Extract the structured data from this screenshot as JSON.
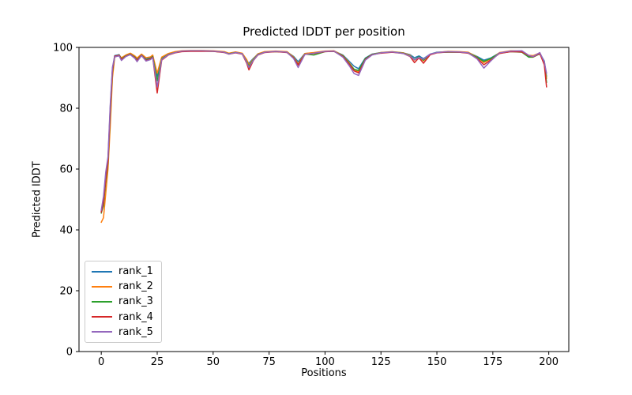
{
  "figure": {
    "title": "Predicted lDDT per position",
    "xlabel": "Positions",
    "ylabel": "Predicted lDDT",
    "background": "#ffffff",
    "spine_color": "#000000"
  },
  "chart_data": {
    "type": "line",
    "title": "Predicted lDDT per position",
    "xlabel": "Positions",
    "ylabel": "Predicted lDDT",
    "xlim": [
      -9.95,
      208.95
    ],
    "ylim": [
      0,
      100
    ],
    "xticks": [
      0,
      25,
      50,
      75,
      100,
      125,
      150,
      175,
      200
    ],
    "yticks": [
      0,
      20,
      40,
      60,
      80,
      100
    ],
    "grid": false,
    "legend_position": "lower-left",
    "x": [
      0,
      1,
      2,
      3,
      4,
      5,
      6,
      8,
      9,
      11,
      13,
      15,
      16,
      18,
      20,
      22,
      23,
      25,
      27,
      30,
      33,
      36,
      40,
      45,
      50,
      55,
      57,
      60,
      63,
      65,
      66,
      68,
      70,
      73,
      78,
      83,
      86,
      88,
      91,
      95,
      100,
      104,
      108,
      111,
      113,
      115,
      118,
      121,
      125,
      130,
      135,
      138,
      140,
      142,
      144,
      147,
      150,
      155,
      160,
      164,
      168,
      171,
      174,
      178,
      183,
      188,
      191,
      193,
      196,
      198,
      199
    ],
    "series": [
      {
        "name": "rank_1",
        "color": "#1f77b4",
        "values": [
          46,
          50,
          58,
          63,
          80,
          93,
          97.3,
          97.6,
          96.4,
          97.3,
          97.9,
          97.0,
          96.2,
          97.6,
          96.3,
          96.6,
          97.3,
          90.5,
          96.5,
          97.8,
          98.4,
          98.7,
          98.8,
          98.8,
          98.8,
          98.5,
          98.0,
          98.4,
          98.0,
          95.6,
          94.8,
          96.4,
          97.8,
          98.5,
          98.7,
          98.5,
          97.0,
          95.3,
          98.0,
          98.2,
          98.7,
          98.8,
          97.5,
          95.3,
          93.8,
          93.0,
          96.5,
          97.8,
          98.3,
          98.5,
          98.2,
          97.6,
          96.6,
          97.2,
          96.3,
          97.8,
          98.4,
          98.6,
          98.5,
          98.3,
          97.0,
          95.8,
          96.5,
          98.2,
          98.7,
          98.6,
          97.0,
          97.2,
          98.1,
          95.5,
          90.5
        ]
      },
      {
        "name": "rank_2",
        "color": "#ff7f0e",
        "values": [
          42.5,
          44,
          52,
          60,
          74,
          90,
          96.8,
          97.4,
          96.6,
          97.5,
          98.1,
          97.2,
          96.5,
          97.8,
          96.6,
          96.9,
          97.5,
          91.5,
          96.8,
          98.0,
          98.6,
          98.9,
          99.0,
          99.0,
          98.9,
          98.6,
          98.1,
          98.5,
          98.1,
          96.0,
          94.3,
          96.2,
          97.9,
          98.6,
          98.8,
          98.6,
          96.8,
          94.6,
          98.0,
          98.3,
          98.8,
          98.9,
          97.3,
          94.8,
          92.8,
          91.9,
          96.2,
          97.7,
          98.3,
          98.6,
          98.2,
          97.4,
          95.8,
          96.8,
          95.6,
          97.7,
          98.3,
          98.7,
          98.6,
          98.4,
          96.8,
          95.0,
          96.2,
          98.3,
          98.9,
          98.8,
          97.4,
          97.3,
          98.2,
          95.0,
          89.8
        ]
      },
      {
        "name": "rank_3",
        "color": "#2ca02c",
        "values": [
          45.5,
          48,
          56,
          62,
          78,
          92,
          97.0,
          97.5,
          96.2,
          97.2,
          97.8,
          96.8,
          95.9,
          97.5,
          95.9,
          96.4,
          97.0,
          89.0,
          96.2,
          97.7,
          98.3,
          98.7,
          98.8,
          98.8,
          98.7,
          98.4,
          97.9,
          98.3,
          97.9,
          95.3,
          93.8,
          96.0,
          97.7,
          98.4,
          98.6,
          98.4,
          96.6,
          94.3,
          97.8,
          97.5,
          98.6,
          98.7,
          97.2,
          94.5,
          92.8,
          92.4,
          96.3,
          97.7,
          98.2,
          98.5,
          98.1,
          97.2,
          96.0,
          96.9,
          95.8,
          97.7,
          98.3,
          98.4,
          98.4,
          98.2,
          96.7,
          95.4,
          96.3,
          98.1,
          98.6,
          98.4,
          96.8,
          96.8,
          97.9,
          94.8,
          88.5
        ]
      },
      {
        "name": "rank_4",
        "color": "#d62728",
        "values": [
          45.8,
          49,
          57,
          62.5,
          79,
          92.5,
          97.1,
          97.4,
          96.0,
          97.1,
          97.7,
          96.6,
          95.7,
          97.4,
          95.7,
          96.2,
          96.8,
          85.0,
          95.8,
          97.5,
          98.2,
          98.6,
          98.7,
          98.7,
          98.7,
          98.3,
          97.8,
          98.2,
          97.8,
          94.8,
          92.6,
          95.7,
          97.5,
          98.3,
          98.6,
          98.3,
          96.5,
          94.2,
          97.7,
          98.0,
          98.6,
          98.7,
          97.0,
          94.3,
          92.3,
          91.6,
          96.0,
          97.6,
          98.1,
          98.4,
          98.0,
          97.0,
          95.0,
          96.6,
          94.8,
          97.6,
          98.2,
          98.5,
          98.4,
          98.1,
          96.4,
          94.3,
          95.8,
          98.0,
          98.6,
          98.5,
          97.3,
          96.9,
          98.0,
          94.3,
          87.0
        ]
      },
      {
        "name": "rank_5",
        "color": "#9467bd",
        "values": [
          46.5,
          51,
          59,
          64,
          81,
          93.5,
          96.9,
          97.2,
          95.7,
          97.0,
          97.6,
          96.4,
          95.3,
          97.3,
          95.5,
          96.0,
          96.6,
          87.0,
          96.0,
          97.6,
          98.3,
          98.8,
          98.9,
          98.9,
          98.8,
          98.4,
          97.8,
          98.3,
          97.9,
          95.1,
          93.4,
          95.8,
          97.6,
          98.4,
          98.7,
          98.4,
          96.3,
          93.4,
          97.7,
          98.1,
          98.7,
          98.8,
          96.8,
          93.8,
          91.4,
          90.8,
          95.8,
          97.5,
          98.2,
          98.5,
          98.0,
          97.1,
          95.9,
          96.7,
          96.1,
          97.8,
          98.3,
          98.6,
          98.5,
          98.2,
          96.2,
          93.2,
          95.5,
          98.2,
          98.8,
          98.9,
          97.4,
          97.0,
          98.3,
          95.2,
          91.5
        ]
      }
    ]
  }
}
